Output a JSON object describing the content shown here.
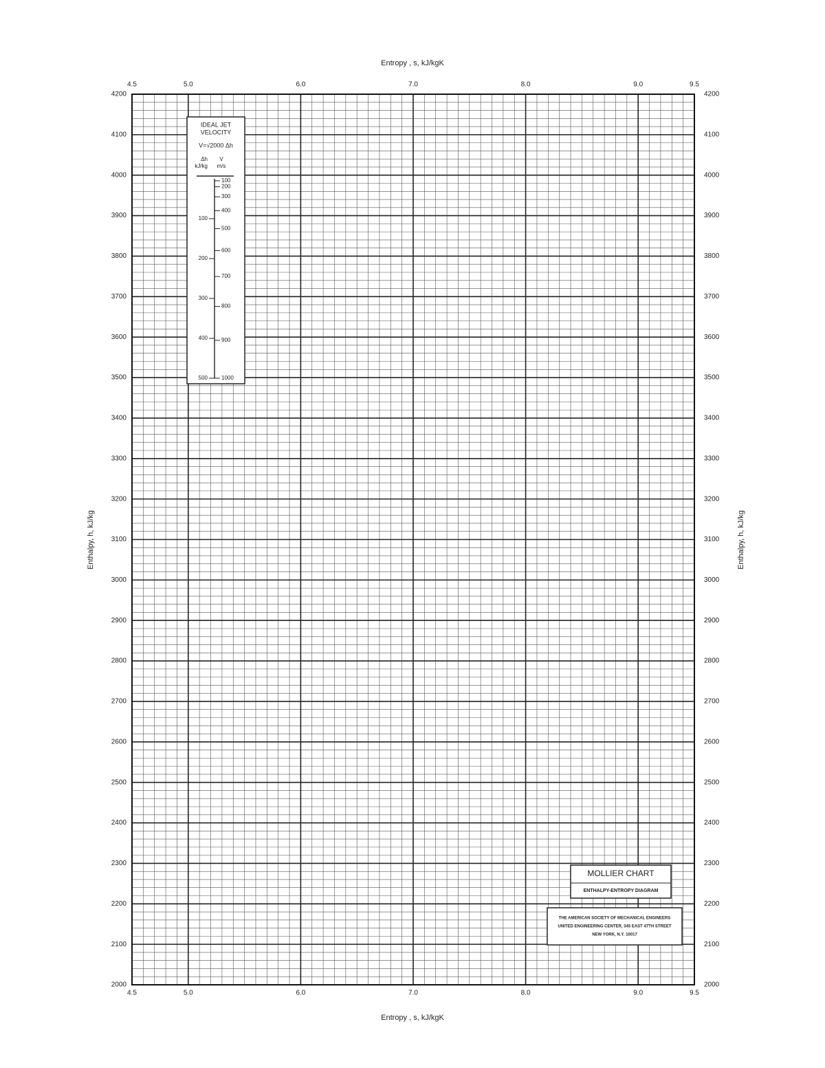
{
  "chart_data": {
    "type": "mollier",
    "x_label": "Entropy , s, kJ/kgK",
    "y_label": "Enthalpy, h, kJ/kg",
    "xlim": [
      4.5,
      9.5
    ],
    "xticks": [
      4.5,
      {
        "value": 5,
        "label": "5.0"
      },
      {
        "value": 6,
        "label": "6.0"
      },
      {
        "value": 7,
        "label": "7.0"
      },
      {
        "value": 8,
        "label": "8.0"
      },
      {
        "value": 9,
        "label": "9.0"
      },
      9.5
    ],
    "ylim": [
      2000,
      4200
    ],
    "yticks": [
      2000,
      2100,
      2200,
      2300,
      2400,
      2500,
      2600,
      2700,
      2800,
      2900,
      3000,
      3100,
      3200,
      3300,
      3400,
      3500,
      3600,
      3700,
      3800,
      3900,
      4000,
      4100,
      4200
    ],
    "grid": true,
    "inset": {
      "title": [
        "IDEAL JET",
        "VELOCITY"
      ],
      "formula": "V=√2000 Δh",
      "dh_header": [
        "Δh",
        "kJ/kg"
      ],
      "v_header": [
        "V",
        "m/s"
      ],
      "dh_ticks": [
        100,
        200,
        300,
        400,
        500
      ],
      "v_ticks": [
        100,
        200,
        300,
        400,
        500,
        600,
        700,
        800,
        900,
        1000
      ]
    },
    "title_box": [
      "MOLLIER CHART",
      "ENTHALPY-ENTROPY DIAGRAM"
    ],
    "publisher": [
      "THE AMERICAN SOCIETY OF MECHANICAL ENGINEERS",
      "UNITED ENGINEERING CENTER, 345 EAST 47TH STREET",
      "NEW YORK, N.Y. 10017"
    ]
  }
}
